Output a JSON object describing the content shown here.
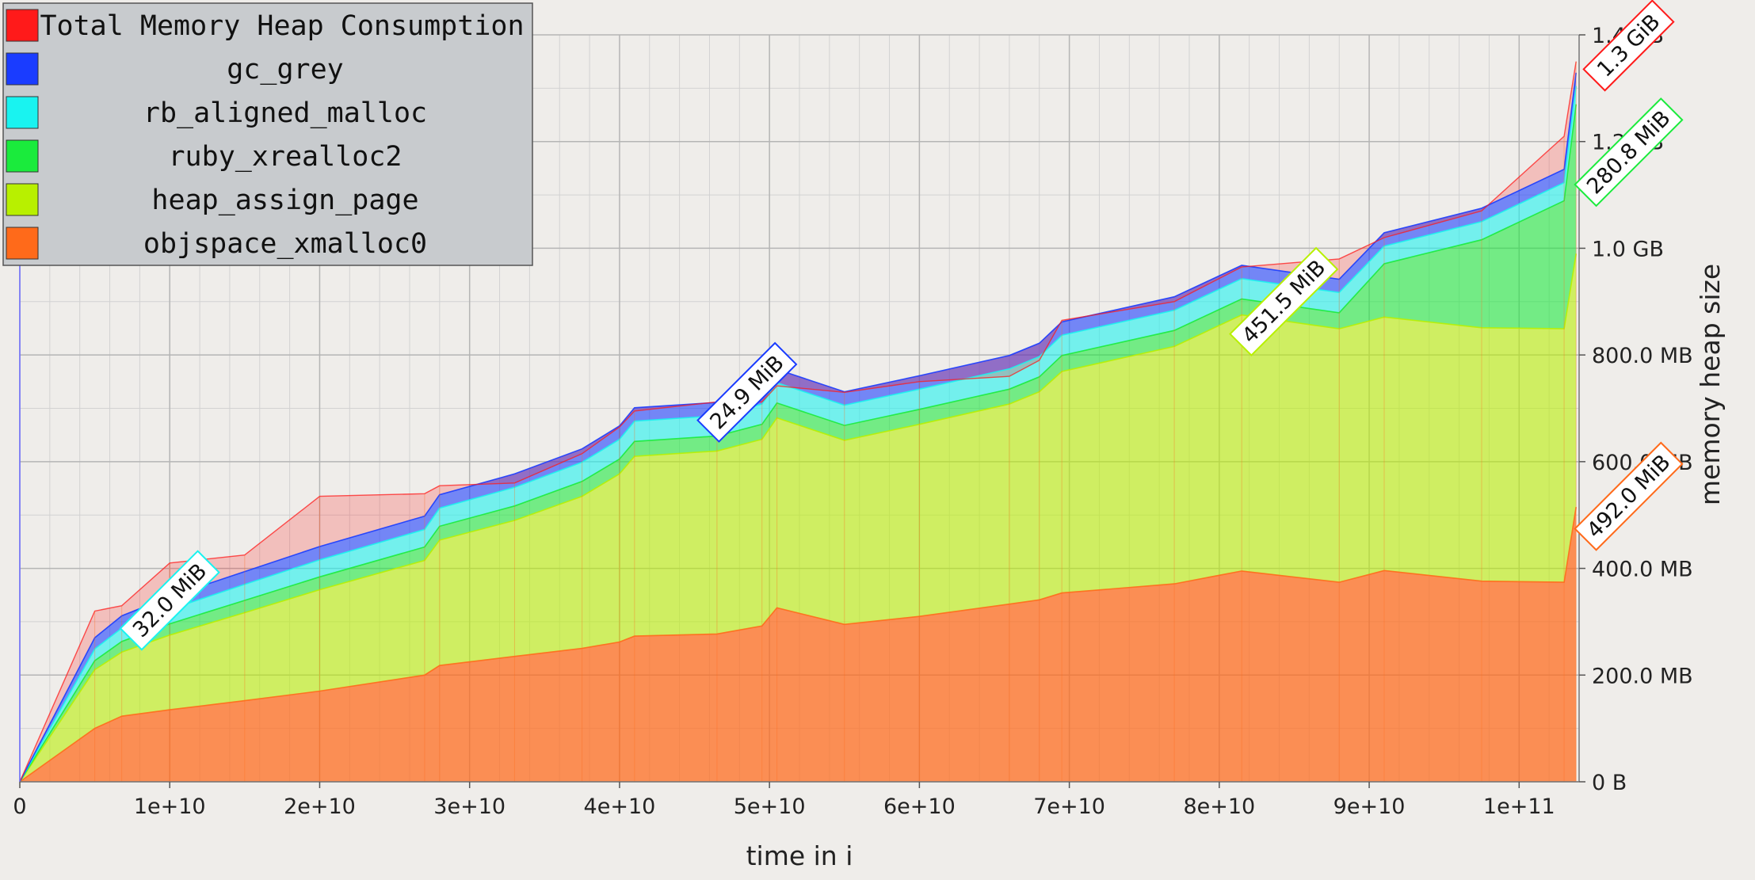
{
  "chart_data": {
    "type": "area",
    "stacked": true,
    "xlabel": "time in i",
    "ylabel": "memory heap size",
    "xlim": [
      0,
      104000000000
    ],
    "ylim": [
      0,
      1400
    ],
    "y_unit": "MB",
    "grid": true,
    "legend_position": "top-left",
    "x_ticks": [
      {
        "value": 0,
        "label": "0"
      },
      {
        "value": 10000000000,
        "label": "1e+10"
      },
      {
        "value": 20000000000,
        "label": "2e+10"
      },
      {
        "value": 30000000000,
        "label": "3e+10"
      },
      {
        "value": 40000000000,
        "label": "4e+10"
      },
      {
        "value": 50000000000,
        "label": "5e+10"
      },
      {
        "value": 60000000000,
        "label": "6e+10"
      },
      {
        "value": 70000000000,
        "label": "7e+10"
      },
      {
        "value": 80000000000,
        "label": "8e+10"
      },
      {
        "value": 90000000000,
        "label": "9e+10"
      },
      {
        "value": 100000000000,
        "label": "1e+11"
      }
    ],
    "y_ticks": [
      {
        "value": 0,
        "label": "0 B"
      },
      {
        "value": 200,
        "label": "200.0 MB"
      },
      {
        "value": 400,
        "label": "400.0 MB"
      },
      {
        "value": 600,
        "label": "600.0 MB"
      },
      {
        "value": 800,
        "label": "800.0 MB"
      },
      {
        "value": 1000,
        "label": "1.0 GB"
      },
      {
        "value": 1200,
        "label": "1.2 GB"
      },
      {
        "value": 1400,
        "label": "1.4 GB"
      }
    ],
    "x": [
      0,
      5000000000,
      6800000000,
      10000000000,
      15000000000,
      20000000000,
      27000000000,
      28000000000,
      33000000000,
      37500000000,
      40000000000,
      41000000000,
      46500000000,
      49500000000,
      50500000000,
      55000000000,
      60000000000,
      66000000000,
      68000000000,
      69500000000,
      77000000000,
      81500000000,
      88000000000,
      91000000000,
      97500000000,
      103000000000,
      103800000000
    ],
    "series": [
      {
        "name": "objspace_xmalloc0",
        "color": "#ff6a1a",
        "values": [
          0,
          100,
          123,
          135,
          152,
          170,
          200,
          218,
          235,
          250,
          262,
          273,
          277,
          292,
          326,
          295,
          310,
          333,
          341,
          354,
          371,
          395,
          374,
          396,
          376,
          374,
          515
        ]
      },
      {
        "name": "heap_assign_page",
        "color": "#b8f000",
        "values": [
          0,
          110,
          120,
          140,
          165,
          190,
          215,
          235,
          255,
          285,
          315,
          337,
          343,
          350,
          356,
          345,
          360,
          375,
          390,
          415,
          445,
          480,
          475,
          475,
          475,
          475,
          475
        ]
      },
      {
        "name": "ruby_xrealloc2",
        "color": "#1aeb3c",
        "values": [
          0,
          17,
          20,
          21,
          23,
          24,
          25,
          26,
          27,
          28,
          28,
          28,
          28,
          28,
          28,
          28,
          28,
          28,
          28,
          30,
          30,
          30,
          30,
          100,
          165,
          240,
          280
        ]
      },
      {
        "name": "rb_aligned_malloc",
        "color": "#19f3f0",
        "values": [
          0,
          22,
          25,
          27,
          30,
          32,
          33,
          34,
          35,
          36,
          37,
          38,
          38,
          38,
          38,
          38,
          38,
          38,
          38,
          38,
          38,
          38,
          38,
          33,
          34,
          34,
          34
        ]
      },
      {
        "name": "gc_grey",
        "color": "#1a3cff",
        "values": [
          0,
          21,
          23,
          24,
          24,
          25,
          25,
          25,
          25,
          25,
          25,
          25,
          25,
          25,
          25,
          25,
          25,
          25,
          25,
          25,
          25,
          25,
          25,
          25,
          25,
          25,
          25
        ]
      },
      {
        "name": "Total Memory Heap Consumption",
        "color": "#ff1a1a",
        "kind": "total",
        "values": [
          0,
          320,
          330,
          410,
          425,
          535,
          540,
          555,
          560,
          615,
          665,
          695,
          712,
          712,
          742,
          730,
          750,
          760,
          790,
          865,
          900,
          965,
          980,
          1020,
          1070,
          1210,
          1350
        ]
      }
    ],
    "annotations": [
      {
        "text": "32.0 MiB",
        "series": "rb_aligned_malloc",
        "x": 10000000000,
        "y": 340,
        "color": "#19f3f0"
      },
      {
        "text": "24.9 MiB",
        "series": "gc_grey",
        "x": 48500000000,
        "y": 730,
        "color": "#1a3cff"
      },
      {
        "text": "451.5 MiB",
        "series": "heap_assign_page",
        "x": 84300000000,
        "y": 900,
        "color": "#b8f000"
      },
      {
        "text": "1.3 GiB",
        "series": "Total Memory Heap Consumption",
        "x": 107300000000,
        "y": 1380,
        "color": "#ff1a1a"
      },
      {
        "text": "280.8 MiB",
        "series": "ruby_xrealloc2",
        "x": 107300000000,
        "y": 1180,
        "color": "#1aeb3c"
      },
      {
        "text": "492.0 MiB",
        "series": "objspace_xmalloc0",
        "x": 107300000000,
        "y": 535,
        "color": "#ff6a1a"
      }
    ]
  },
  "legend": {
    "items": [
      {
        "label": "Total Memory Heap Consumption",
        "color": "#ff1a1a"
      },
      {
        "label": "gc_grey",
        "color": "#1a3cff"
      },
      {
        "label": "rb_aligned_malloc",
        "color": "#19f3f0"
      },
      {
        "label": "ruby_xrealloc2",
        "color": "#1aeb3c"
      },
      {
        "label": "heap_assign_page",
        "color": "#b8f000"
      },
      {
        "label": "objspace_xmalloc0",
        "color": "#ff6a1a"
      }
    ]
  }
}
